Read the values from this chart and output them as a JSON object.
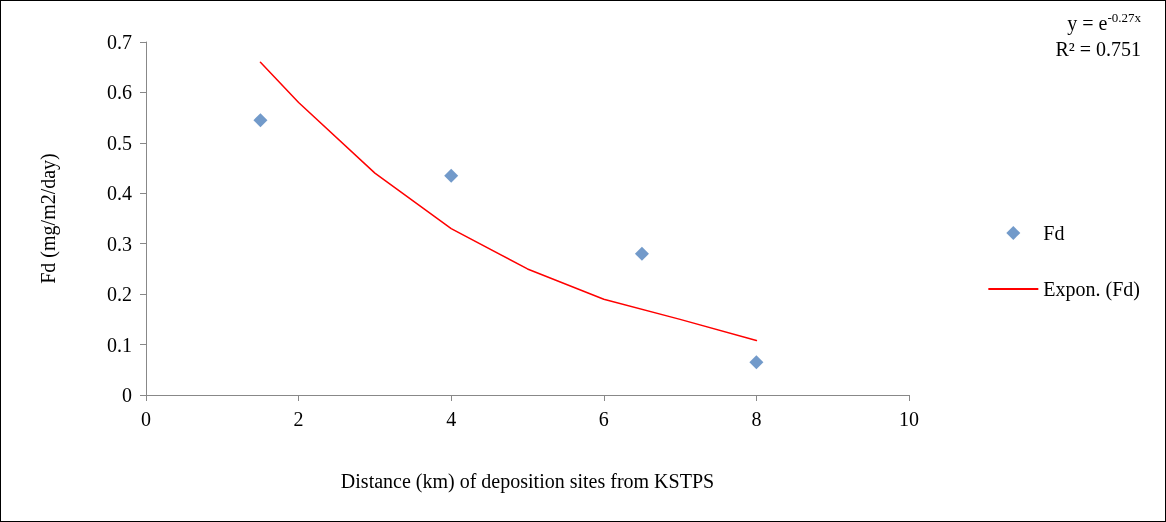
{
  "chart_data": {
    "type": "scatter",
    "xlabel": "Distance (km) of deposition sites from KSTPS",
    "ylabel": "Fd (mg/m2/day)",
    "xlim": [
      0,
      10
    ],
    "xticks": [
      0,
      2,
      4,
      6,
      8,
      10
    ],
    "ylim": [
      0,
      0.7
    ],
    "yticks": [
      0,
      0.1,
      0.2,
      0.3,
      0.4,
      0.5,
      0.6,
      0.7
    ],
    "grid": false,
    "legend": "right",
    "annotations": [
      "y = e$^{-0.27x}$",
      "R² = 0.751"
    ],
    "series": [
      {
        "name": "Fd",
        "marker": "diamond",
        "color": "#4f81bd",
        "x": [
          1.5,
          4,
          6.5,
          8
        ],
        "values": [
          0.545,
          0.435,
          0.28,
          0.065
        ]
      },
      {
        "name": "Expon. (Fd)",
        "type": "line",
        "marker": "none",
        "line_style": "solid",
        "color": "#ff0000",
        "x": [
          1.5,
          2,
          3,
          4,
          5,
          6,
          7,
          8
        ],
        "values": [
          0.66,
          0.58,
          0.44,
          0.33,
          0.25,
          0.19,
          0.15,
          0.108
        ]
      }
    ]
  }
}
